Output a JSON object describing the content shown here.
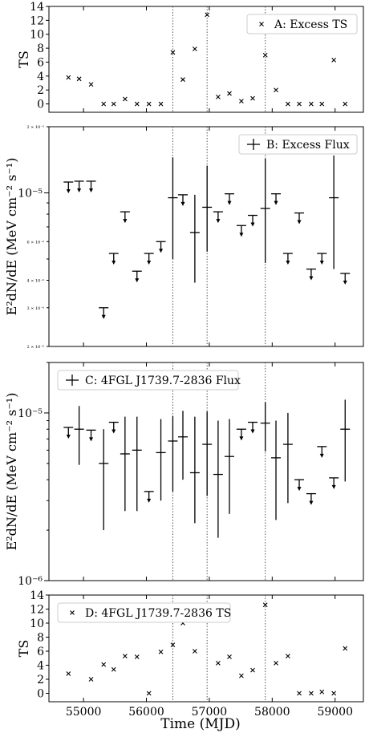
{
  "figure": {
    "xlabel": "Time (MJD)",
    "x_ticks": [
      55000,
      56000,
      57000,
      58000,
      59000
    ],
    "xlim": [
      54450,
      59450
    ],
    "vlines": [
      56420,
      56965,
      57890
    ]
  },
  "chart_data": [
    {
      "id": "A",
      "type": "scatter",
      "legend": "A: Excess TS",
      "ylabel": "TS",
      "yscale": "linear",
      "ylim": [
        -1.2,
        14
      ],
      "y_ticks": [
        0,
        2,
        4,
        6,
        8,
        10,
        12,
        14
      ],
      "y_tick_labels": [
        "0",
        "2",
        "4",
        "6",
        "8",
        "10",
        "12",
        "14"
      ],
      "legend_position": "top-right",
      "x": [
        54760,
        54930,
        55120,
        55320,
        55480,
        55660,
        55850,
        56040,
        56230,
        56420,
        56580,
        56770,
        56965,
        57140,
        57320,
        57510,
        57690,
        57890,
        58060,
        58250,
        58430,
        58620,
        58790,
        58980,
        59160
      ],
      "y": [
        3.8,
        3.6,
        2.8,
        0,
        0,
        0.7,
        0,
        0,
        0,
        7.4,
        3.5,
        7.9,
        12.8,
        1.0,
        1.5,
        0.4,
        0.8,
        7.0,
        2.0,
        0,
        0,
        0,
        0,
        6.3,
        0
      ]
    },
    {
      "id": "B",
      "type": "errorbar",
      "legend": "B: Excess Flux",
      "ylabel": "E²dN/dE (MeV cm⁻² s⁻¹)",
      "yscale": "log",
      "ylim": [
        2e-06,
        2e-05
      ],
      "major_ticks": [
        1e-05
      ],
      "major_tick_labels": [
        "10⁻⁵"
      ],
      "minor_ticks": [
        3e-06,
        4e-06,
        6e-06,
        2e-05
      ],
      "minor_tick_labels": [
        "3 × 10⁻⁶",
        "4 × 10⁻⁶",
        "6 × 10⁻⁶",
        "2 × 10⁻⁵"
      ],
      "low_tick_label": "2 × 10⁻⁶",
      "legend_position": "top-right",
      "upper_limits": [
        {
          "x": 54760,
          "y": 1.12e-05
        },
        {
          "x": 54930,
          "y": 1.13e-05
        },
        {
          "x": 55120,
          "y": 1.13e-05
        },
        {
          "x": 55320,
          "y": 3e-06
        },
        {
          "x": 55480,
          "y": 5.3e-06
        },
        {
          "x": 55660,
          "y": 8.2e-06
        },
        {
          "x": 55850,
          "y": 4.4e-06
        },
        {
          "x": 56040,
          "y": 5.3e-06
        },
        {
          "x": 56230,
          "y": 6e-06
        },
        {
          "x": 56580,
          "y": 9.8e-06
        },
        {
          "x": 57140,
          "y": 8.2e-06
        },
        {
          "x": 57320,
          "y": 9.9e-06
        },
        {
          "x": 57510,
          "y": 7.1e-06
        },
        {
          "x": 57690,
          "y": 7.9e-06
        },
        {
          "x": 58060,
          "y": 9.9e-06
        },
        {
          "x": 58250,
          "y": 5.3e-06
        },
        {
          "x": 58430,
          "y": 8.1e-06
        },
        {
          "x": 58620,
          "y": 4.5e-06
        },
        {
          "x": 58790,
          "y": 5.3e-06
        },
        {
          "x": 59160,
          "y": 4.3e-06
        }
      ],
      "points": [
        {
          "x": 56420,
          "y": 9.5e-06,
          "lo": 5e-06,
          "hi": 1.45e-05
        },
        {
          "x": 56770,
          "y": 6.6e-06,
          "lo": 3.9e-06,
          "hi": 9.8e-06
        },
        {
          "x": 56965,
          "y": 8.6e-06,
          "lo": 5.4e-06,
          "hi": 1.33e-05
        },
        {
          "x": 57890,
          "y": 8.5e-06,
          "lo": 4.8e-06,
          "hi": 1.43e-05
        },
        {
          "x": 58980,
          "y": 9.5e-06,
          "lo": 4.5e-06,
          "hi": 1.48e-05
        }
      ]
    },
    {
      "id": "C",
      "type": "errorbar",
      "legend": "C: 4FGL J1739.7-2836 Flux",
      "ylabel": "E²dN/dE (MeV cm⁻² s⁻¹)",
      "yscale": "log",
      "ylim": [
        1e-06,
        2e-05
      ],
      "major_ticks": [
        1e-06,
        1e-05
      ],
      "major_tick_labels": [
        "10⁻⁶",
        "10⁻⁵"
      ],
      "legend_position": "top-left",
      "upper_limits": [
        {
          "x": 54760,
          "y": 8.2e-06
        },
        {
          "x": 55120,
          "y": 7.9e-06
        },
        {
          "x": 55480,
          "y": 8.8e-06
        },
        {
          "x": 56040,
          "y": 3.4e-06
        },
        {
          "x": 57510,
          "y": 8e-06
        },
        {
          "x": 57690,
          "y": 8.8e-06
        },
        {
          "x": 58430,
          "y": 4e-06
        },
        {
          "x": 58620,
          "y": 3.3e-06
        },
        {
          "x": 58790,
          "y": 6.3e-06
        },
        {
          "x": 58980,
          "y": 4.1e-06
        }
      ],
      "points": [
        {
          "x": 54930,
          "y": 8e-06,
          "lo": 4.9e-06,
          "hi": 1.1e-05
        },
        {
          "x": 55320,
          "y": 5e-06,
          "lo": 2e-06,
          "hi": 8e-06
        },
        {
          "x": 55660,
          "y": 5.7e-06,
          "lo": 2.6e-06,
          "hi": 9.5e-06
        },
        {
          "x": 55850,
          "y": 6e-06,
          "lo": 2.6e-06,
          "hi": 9.5e-06
        },
        {
          "x": 56230,
          "y": 5.8e-06,
          "lo": 3e-06,
          "hi": 9.2e-06
        },
        {
          "x": 56420,
          "y": 6.8e-06,
          "lo": 3.4e-06,
          "hi": 9.6e-06
        },
        {
          "x": 56580,
          "y": 7.2e-06,
          "lo": 4e-06,
          "hi": 1.03e-05
        },
        {
          "x": 56770,
          "y": 4.4e-06,
          "lo": 2.2e-06,
          "hi": 9.5e-06
        },
        {
          "x": 56965,
          "y": 6.5e-06,
          "lo": 3.2e-06,
          "hi": 1.02e-05
        },
        {
          "x": 57140,
          "y": 4.3e-06,
          "lo": 1.8e-06,
          "hi": 9e-06
        },
        {
          "x": 57320,
          "y": 5.5e-06,
          "lo": 2.5e-06,
          "hi": 9.2e-06
        },
        {
          "x": 57890,
          "y": 8.7e-06,
          "lo": 5.9e-06,
          "hi": 1.16e-05
        },
        {
          "x": 58060,
          "y": 5.4e-06,
          "lo": 2.3e-06,
          "hi": 9e-06
        },
        {
          "x": 58250,
          "y": 6.5e-06,
          "lo": 2.9e-06,
          "hi": 1e-05
        },
        {
          "x": 59160,
          "y": 8e-06,
          "lo": 3.9e-06,
          "hi": 1.2e-05
        }
      ]
    },
    {
      "id": "D",
      "type": "scatter",
      "legend": "D: 4FGL J1739.7-2836 TS",
      "ylabel": "TS",
      "yscale": "linear",
      "ylim": [
        -1.2,
        14
      ],
      "y_ticks": [
        0,
        2,
        4,
        6,
        8,
        10,
        12,
        14
      ],
      "y_tick_labels": [
        "0",
        "2",
        "4",
        "6",
        "8",
        "10",
        "12",
        "14"
      ],
      "legend_position": "top-left",
      "x": [
        54760,
        55120,
        55320,
        55480,
        55660,
        55850,
        56040,
        56230,
        56420,
        56580,
        56770,
        57140,
        57320,
        57510,
        57690,
        57890,
        58060,
        58250,
        58430,
        58620,
        58790,
        58980,
        59160
      ],
      "y": [
        2.8,
        2.0,
        4.1,
        3.4,
        5.3,
        5.2,
        0,
        5.9,
        6.9,
        10.0,
        6.0,
        4.3,
        5.2,
        2.5,
        3.3,
        12.6,
        4.3,
        5.3,
        0,
        0,
        0.2,
        0,
        6.4
      ]
    }
  ]
}
